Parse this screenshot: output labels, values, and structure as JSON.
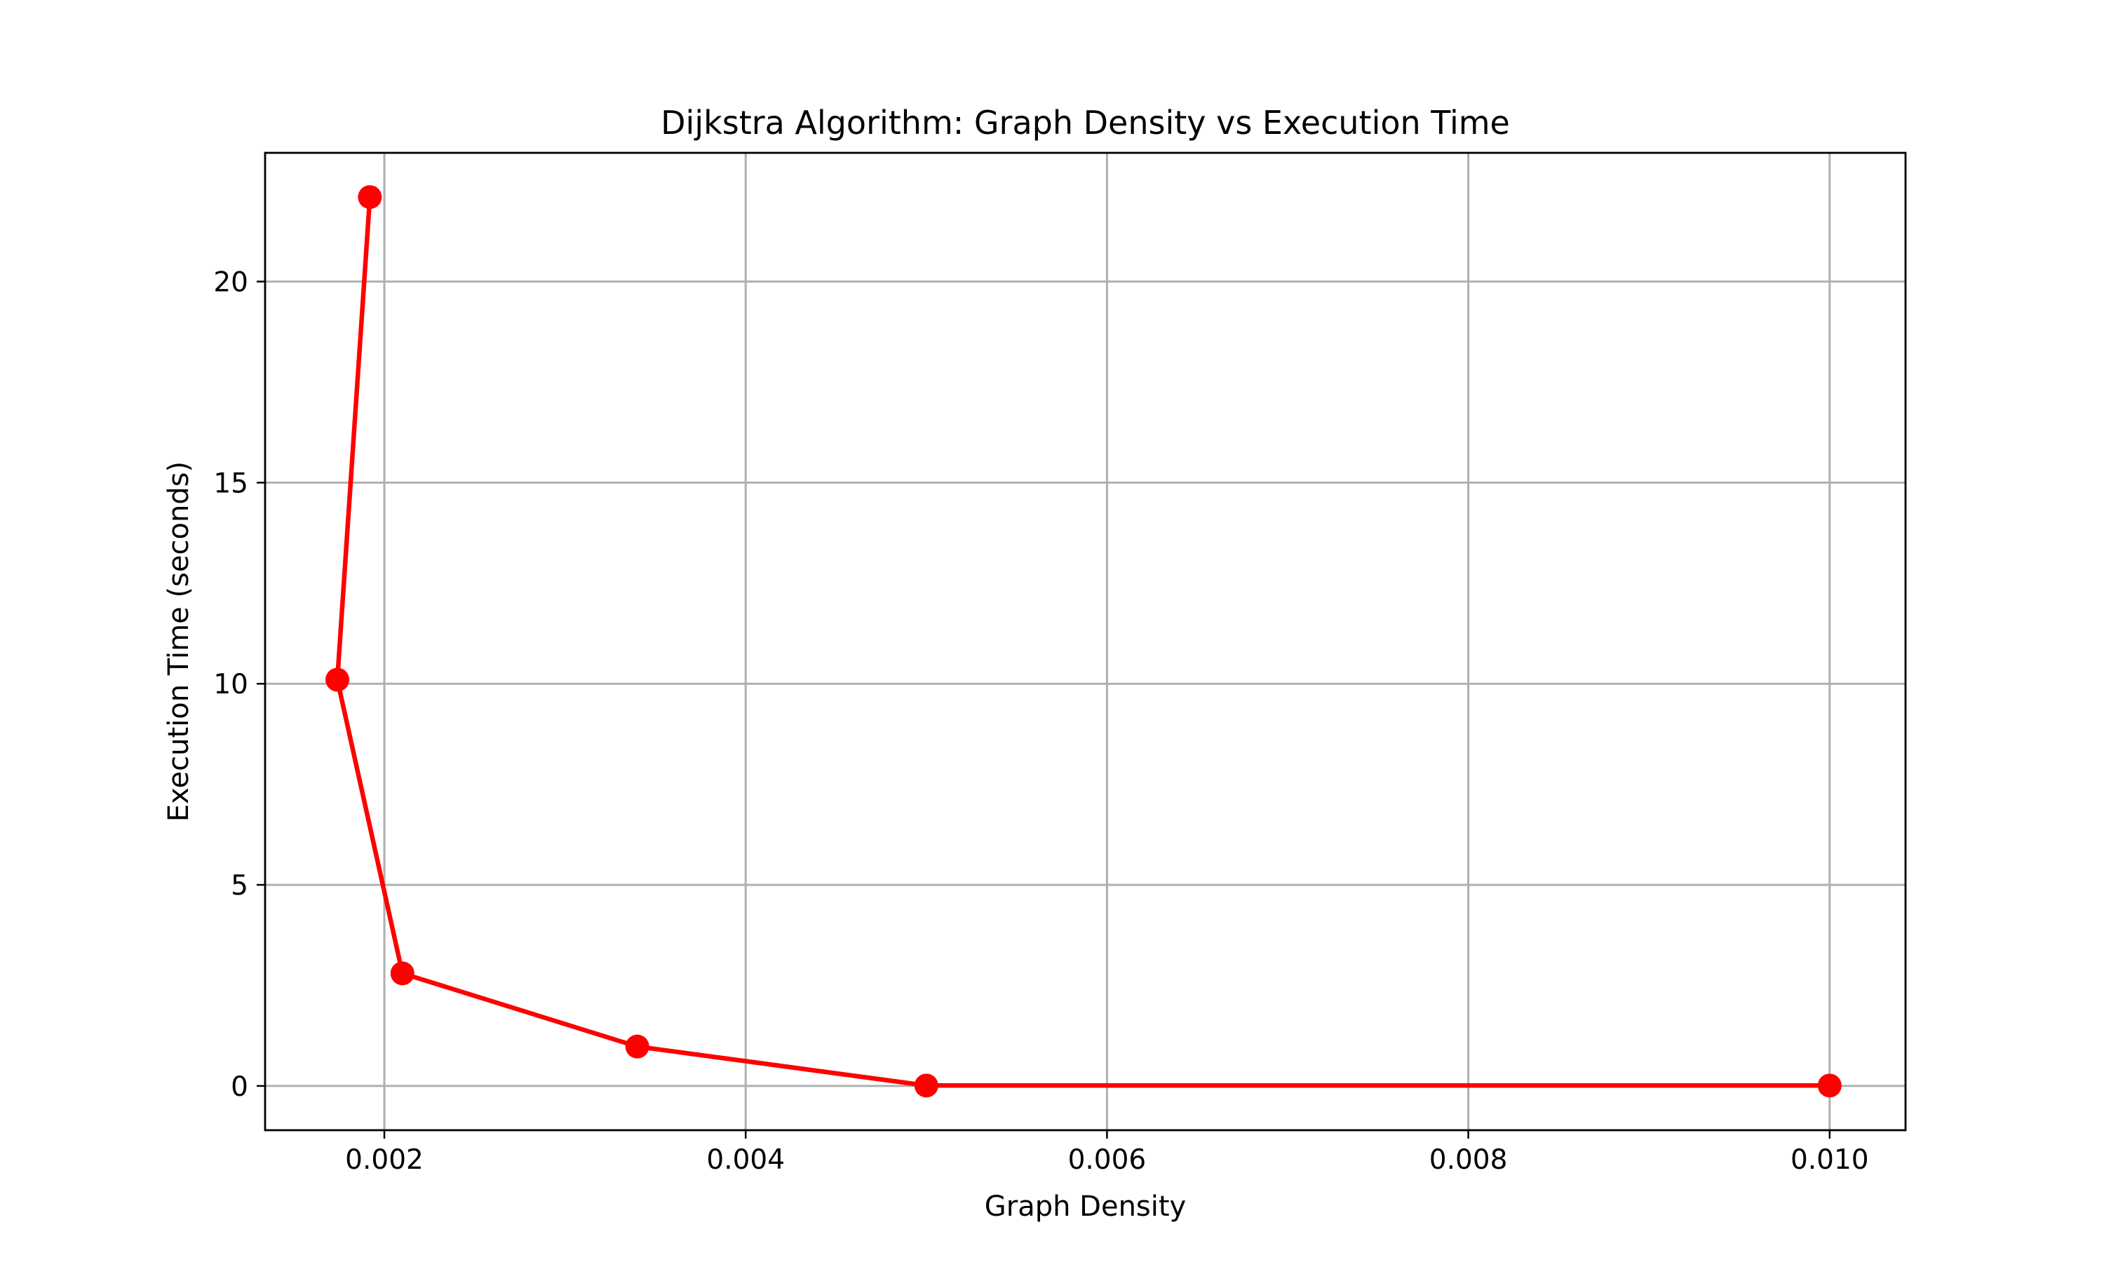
{
  "colors": {
    "series": "#ff0000",
    "grid": "#b0b0b0",
    "axes": "#000000",
    "background": "#ffffff"
  },
  "chart_data": {
    "type": "line",
    "title": "Dijkstra Algorithm: Graph Density vs Execution Time",
    "xlabel": "Graph Density",
    "ylabel": "Execution Time (seconds)",
    "xlim": [
      0.00134,
      0.01042
    ],
    "ylim": [
      -1.1,
      23.2
    ],
    "grid": true,
    "marker": "circle",
    "x_ticks": [
      {
        "value": 0.002,
        "label": "0.002"
      },
      {
        "value": 0.004,
        "label": "0.004"
      },
      {
        "value": 0.006,
        "label": "0.006"
      },
      {
        "value": 0.008,
        "label": "0.008"
      },
      {
        "value": 0.01,
        "label": "0.010"
      }
    ],
    "y_ticks": [
      {
        "value": 0,
        "label": "0"
      },
      {
        "value": 5,
        "label": "5"
      },
      {
        "value": 10,
        "label": "10"
      },
      {
        "value": 15,
        "label": "15"
      },
      {
        "value": 20,
        "label": "20"
      }
    ],
    "series": [
      {
        "color": "#ff0000",
        "x": [
          0.00192,
          0.00174,
          0.0021,
          0.0034,
          0.005,
          0.01
        ],
        "y": [
          22.1,
          10.1,
          2.8,
          0.98,
          0.01,
          0.01
        ]
      }
    ]
  }
}
